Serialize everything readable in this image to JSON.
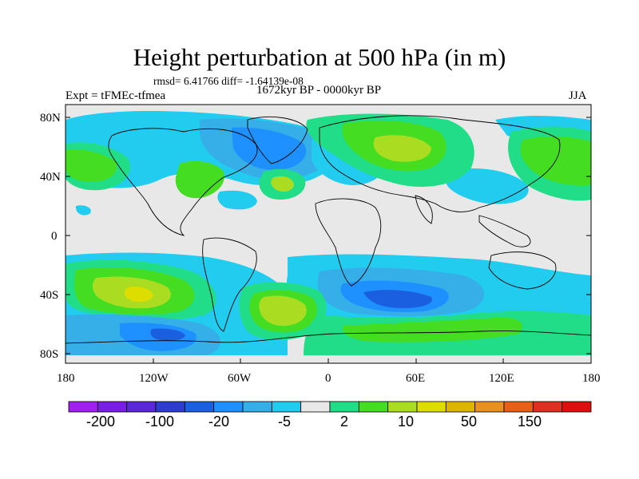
{
  "title": "Height perturbation at 500 hPa (in m)",
  "stats": "rmsd= 6.41766 diff= -1.64139e-08",
  "expt": "Expt = tFMEc-tfmea",
  "period": "1672kyr BP - 0000kyr BP",
  "season": "JJA",
  "axes": {
    "y_labels": [
      "80N",
      "40N",
      "0",
      "40S",
      "80S"
    ],
    "x_labels": [
      "180",
      "120W",
      "60W",
      "0",
      "60E",
      "120E",
      "180"
    ]
  },
  "colorbar": {
    "labels": [
      "-200",
      "-100",
      "-20",
      "-5",
      "2",
      "10",
      "50",
      "150"
    ],
    "colors": [
      "#a020f0",
      "#7a1ee6",
      "#5a28d8",
      "#2d3ccf",
      "#1a5fe0",
      "#1e90ff",
      "#36aee8",
      "#22ccee",
      "#e8e8e8",
      "#22dd88",
      "#44dd22",
      "#aadd22",
      "#dddd00",
      "#ddb400",
      "#e89020",
      "#e86018",
      "#dd3020",
      "#dd1010"
    ]
  },
  "field_colors": {
    "land_bg": "#e8e8e8",
    "neg_light": "#22ccee",
    "neg_mid": "#36aee8",
    "neg_strong": "#1e90ff",
    "neg_deep": "#1a5fe0",
    "neg_max": "#2d3ccf",
    "pos_light": "#22dd88",
    "pos_mid": "#44dd22",
    "pos_strong": "#aadd22",
    "pos_max": "#dddd00"
  }
}
